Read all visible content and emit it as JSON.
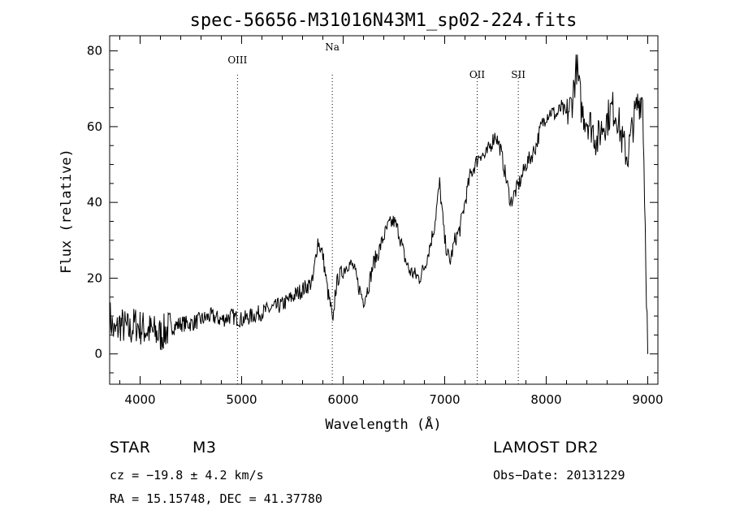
{
  "chart_data": {
    "type": "line",
    "title": "spec-56656-M31016N43M1_sp02-224.fits",
    "xlabel": "Wavelength (Å)",
    "ylabel": "Flux (relative)",
    "xlim": [
      3700,
      9100
    ],
    "ylim": [
      -8,
      84
    ],
    "x_ticks": [
      4000,
      5000,
      6000,
      7000,
      8000,
      9000
    ],
    "y_ticks": [
      0,
      20,
      40,
      60,
      80
    ],
    "grid": false,
    "lines": [
      {
        "label": "OIII",
        "x": 4959
      },
      {
        "label": "Na",
        "x": 5893
      },
      {
        "label": "OII",
        "x": 7320
      },
      {
        "label": "SII",
        "x": 7725
      }
    ],
    "series": [
      {
        "x": [
          3700,
          3750,
          3800,
          3850,
          3900,
          3950,
          4000,
          4100,
          4200,
          4300,
          4400,
          4500,
          4600,
          4700,
          4800,
          4900,
          5000,
          5100,
          5200,
          5300,
          5400,
          5500,
          5600,
          5700,
          5750,
          5800,
          5850,
          5880,
          5900,
          5920,
          5950,
          6000,
          6050,
          6100,
          6150,
          6200,
          6250,
          6300,
          6350,
          6400,
          6450,
          6500,
          6550,
          6600,
          6650,
          6700,
          6750,
          6800,
          6850,
          6900,
          6950,
          7000,
          7050,
          7100,
          7150,
          7200,
          7250,
          7300,
          7350,
          7400,
          7450,
          7500,
          7550,
          7600,
          7650,
          7700,
          7750,
          7800,
          7850,
          7900,
          7950,
          8000,
          8050,
          8100,
          8150,
          8200,
          8250,
          8300,
          8350,
          8400,
          8450,
          8500,
          8550,
          8600,
          8650,
          8700,
          8750,
          8800,
          8850,
          8900,
          8950,
          9000
        ],
        "values": [
          10,
          5,
          8,
          7,
          6,
          8,
          7,
          6,
          5,
          7,
          8,
          8,
          9,
          10,
          9,
          10,
          9,
          10,
          11,
          12,
          13,
          15,
          17,
          19,
          30,
          26,
          16,
          12,
          7,
          16,
          20,
          22,
          24,
          23,
          18,
          14,
          18,
          24,
          27,
          31,
          34,
          35,
          32,
          26,
          22,
          21,
          20,
          23,
          28,
          34,
          45,
          30,
          24,
          30,
          33,
          40,
          47,
          50,
          53,
          52,
          55,
          58,
          54,
          47,
          40,
          43,
          46,
          50,
          52,
          55,
          60,
          63,
          64,
          63,
          65,
          63,
          66,
          76,
          64,
          62,
          60,
          56,
          60,
          62,
          65,
          63,
          56,
          52,
          60,
          66,
          68,
          0
        ]
      }
    ]
  },
  "info": {
    "object_type": "STAR",
    "subclass": "M3",
    "survey": "LAMOST  DR2",
    "cz": "cz = −19.8 ± 4.2 km/s",
    "obs_date": "Obs−Date: 20131229",
    "coords": "RA =  15.15748, DEC =  41.37780"
  }
}
